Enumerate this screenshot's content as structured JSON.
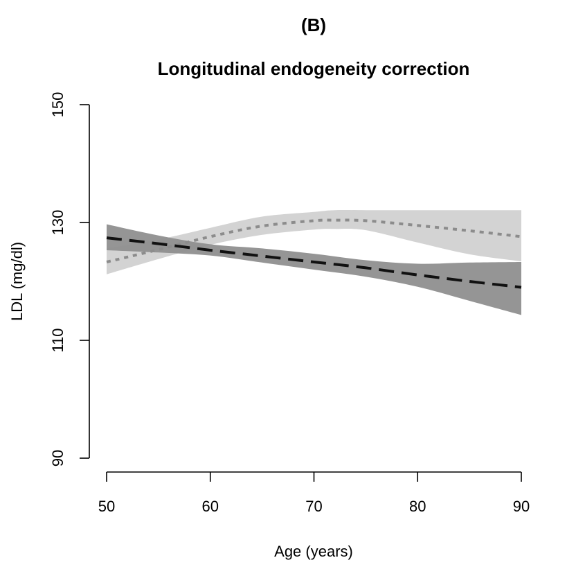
{
  "chart_data": {
    "type": "line",
    "panel_label": "(B)",
    "title": "Longitudinal endogeneity correction",
    "xlabel": "Age (years)",
    "ylabel": "LDL (mg/dl)",
    "xlim": [
      50,
      90
    ],
    "ylim": [
      90,
      150
    ],
    "x_ticks": [
      50,
      60,
      70,
      80,
      90
    ],
    "y_ticks": [
      90,
      110,
      130,
      150
    ],
    "grid": false,
    "series": [
      {
        "name": "dotted curve (light band)",
        "style": "dotted",
        "line_color": "#8c8c8c",
        "band_color": "#d3d3d3",
        "x": [
          50,
          55,
          60,
          65,
          70,
          72,
          75,
          80,
          85,
          90
        ],
        "values": [
          123.3,
          125.4,
          127.6,
          129.4,
          130.3,
          130.4,
          130.3,
          129.5,
          128.6,
          127.6
        ],
        "lower": [
          121.2,
          123.8,
          126.2,
          127.9,
          128.8,
          128.9,
          128.7,
          126.6,
          124.6,
          123.4
        ],
        "upper": [
          125.6,
          127.1,
          129.1,
          131.0,
          131.8,
          132.1,
          132.1,
          132.1,
          132.1,
          132.1
        ]
      },
      {
        "name": "dashed line (dark band)",
        "style": "dashed",
        "line_color": "#111111",
        "band_color": "#8f8f8f",
        "x": [
          50,
          55,
          60,
          65,
          70,
          75,
          80,
          85,
          90
        ],
        "values": [
          127.4,
          126.4,
          125.3,
          124.3,
          123.3,
          122.3,
          121.1,
          120.0,
          119.0
        ],
        "lower": [
          125.3,
          124.9,
          124.4,
          123.2,
          122.0,
          120.8,
          119.1,
          116.7,
          114.3
        ],
        "upper": [
          129.7,
          127.8,
          126.3,
          125.6,
          124.7,
          123.6,
          123.0,
          123.2,
          123.3
        ]
      }
    ]
  }
}
